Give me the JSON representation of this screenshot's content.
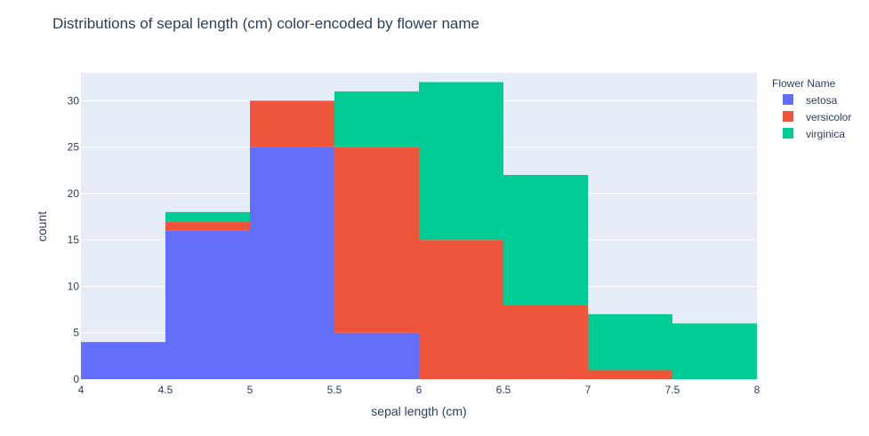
{
  "chart_data": {
    "type": "bar",
    "subtype": "stacked-histogram",
    "title": "Distributions of sepal length (cm) color-encoded by flower name",
    "xlabel": "sepal length (cm)",
    "ylabel": "count",
    "xlim": [
      4,
      8
    ],
    "ylim": [
      0,
      33
    ],
    "bin_edges": [
      4,
      4.5,
      5,
      5.5,
      6,
      6.5,
      7,
      7.5,
      8
    ],
    "x_ticks": [
      "4",
      "4.5",
      "5",
      "5.5",
      "6",
      "6.5",
      "7",
      "7.5",
      "8"
    ],
    "y_ticks": [
      "0",
      "5",
      "10",
      "15",
      "20",
      "25",
      "30"
    ],
    "legend_title": "Flower Name",
    "legend_position": "right",
    "grid": true,
    "plot_background": "#e5ecf6",
    "series": [
      {
        "name": "setosa",
        "color": "#636efa",
        "values": [
          4,
          16,
          25,
          5,
          0,
          0,
          0,
          0
        ]
      },
      {
        "name": "versicolor",
        "color": "#ef553b",
        "values": [
          0,
          1,
          5,
          20,
          15,
          8,
          1,
          0
        ]
      },
      {
        "name": "virginica",
        "color": "#00cc96",
        "values": [
          0,
          1,
          0,
          6,
          17,
          14,
          6,
          6
        ]
      }
    ]
  }
}
